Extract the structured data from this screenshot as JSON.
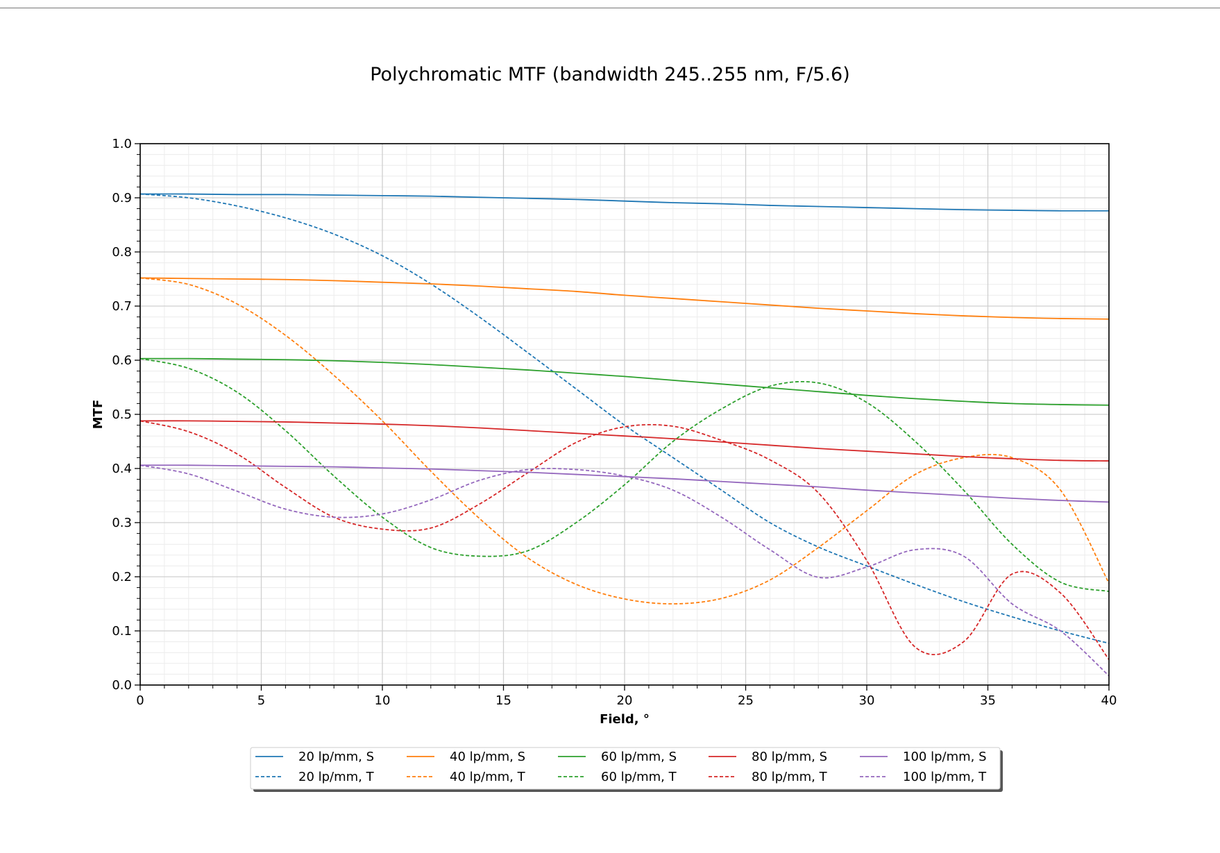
{
  "chart_data": {
    "type": "line",
    "title": "Polychromatic MTF (bandwidth 245..255 nm, F/5.6)",
    "xlabel": "Field, °",
    "ylabel": "MTF",
    "xlim": [
      0,
      40
    ],
    "ylim": [
      0.0,
      1.0
    ],
    "x_ticks": [
      "0",
      "5",
      "10",
      "15",
      "20",
      "25",
      "30",
      "35",
      "40"
    ],
    "y_ticks": [
      "0.0",
      "0.1",
      "0.2",
      "0.3",
      "0.4",
      "0.5",
      "0.6",
      "0.7",
      "0.8",
      "0.9",
      "1.0"
    ],
    "grid": "major and minor",
    "legend_position": "bottom-center, below axes, 5 columns",
    "x": [
      0,
      2,
      4,
      6,
      8,
      10,
      12,
      14,
      16,
      18,
      20,
      22,
      24,
      26,
      28,
      30,
      32,
      34,
      36,
      38,
      40
    ],
    "series": [
      {
        "name": "20 lp/mm, S",
        "color": "#1f77b4",
        "style": "solid",
        "values": [
          0.907,
          0.907,
          0.906,
          0.906,
          0.905,
          0.904,
          0.903,
          0.901,
          0.899,
          0.897,
          0.894,
          0.891,
          0.889,
          0.886,
          0.884,
          0.882,
          0.88,
          0.878,
          0.877,
          0.876,
          0.876
        ]
      },
      {
        "name": "20 lp/mm, T",
        "color": "#1f77b4",
        "style": "dashed",
        "values": [
          0.907,
          0.9,
          0.885,
          0.863,
          0.833,
          0.793,
          0.741,
          0.68,
          0.614,
          0.547,
          0.48,
          0.42,
          0.36,
          0.3,
          0.255,
          0.22,
          0.186,
          0.154,
          0.126,
          0.1,
          0.077
        ]
      },
      {
        "name": "40 lp/mm, S",
        "color": "#ff7f0e",
        "style": "solid",
        "values": [
          0.752,
          0.751,
          0.75,
          0.749,
          0.747,
          0.744,
          0.741,
          0.737,
          0.732,
          0.727,
          0.72,
          0.714,
          0.708,
          0.702,
          0.696,
          0.691,
          0.686,
          0.682,
          0.679,
          0.677,
          0.676
        ]
      },
      {
        "name": "40 lp/mm, T",
        "color": "#ff7f0e",
        "style": "dashed",
        "values": [
          0.752,
          0.74,
          0.704,
          0.646,
          0.572,
          0.488,
          0.395,
          0.308,
          0.235,
          0.186,
          0.159,
          0.15,
          0.16,
          0.194,
          0.254,
          0.322,
          0.389,
          0.42,
          0.42,
          0.36,
          0.188
        ]
      },
      {
        "name": "60 lp/mm, S",
        "color": "#2ca02c",
        "style": "solid",
        "values": [
          0.603,
          0.603,
          0.602,
          0.601,
          0.599,
          0.596,
          0.592,
          0.587,
          0.582,
          0.576,
          0.57,
          0.563,
          0.556,
          0.549,
          0.542,
          0.535,
          0.529,
          0.524,
          0.52,
          0.518,
          0.517
        ]
      },
      {
        "name": "60 lp/mm, T",
        "color": "#2ca02c",
        "style": "dashed",
        "values": [
          0.603,
          0.585,
          0.541,
          0.47,
          0.386,
          0.31,
          0.254,
          0.238,
          0.248,
          0.3,
          0.37,
          0.45,
          0.51,
          0.552,
          0.558,
          0.522,
          0.45,
          0.36,
          0.26,
          0.19,
          0.173
        ]
      },
      {
        "name": "80 lp/mm, S",
        "color": "#d62728",
        "style": "solid",
        "values": [
          0.488,
          0.488,
          0.487,
          0.486,
          0.484,
          0.482,
          0.479,
          0.475,
          0.47,
          0.465,
          0.46,
          0.455,
          0.449,
          0.443,
          0.437,
          0.432,
          0.427,
          0.422,
          0.418,
          0.415,
          0.414
        ]
      },
      {
        "name": "80 lp/mm, T",
        "color": "#d62728",
        "style": "dashed",
        "values": [
          0.488,
          0.468,
          0.427,
          0.365,
          0.31,
          0.288,
          0.29,
          0.334,
          0.392,
          0.448,
          0.477,
          0.478,
          0.452,
          0.416,
          0.355,
          0.23,
          0.07,
          0.08,
          0.205,
          0.17,
          0.047
        ]
      },
      {
        "name": "100 lp/mm, S",
        "color": "#9467bd",
        "style": "solid",
        "values": [
          0.406,
          0.406,
          0.405,
          0.404,
          0.403,
          0.401,
          0.399,
          0.396,
          0.393,
          0.389,
          0.385,
          0.381,
          0.376,
          0.371,
          0.366,
          0.36,
          0.355,
          0.35,
          0.345,
          0.341,
          0.338
        ]
      },
      {
        "name": "100 lp/mm, T",
        "color": "#9467bd",
        "style": "dashed",
        "values": [
          0.406,
          0.39,
          0.358,
          0.325,
          0.31,
          0.316,
          0.342,
          0.378,
          0.398,
          0.398,
          0.386,
          0.36,
          0.31,
          0.25,
          0.199,
          0.218,
          0.25,
          0.238,
          0.15,
          0.1,
          0.017
        ]
      }
    ]
  }
}
